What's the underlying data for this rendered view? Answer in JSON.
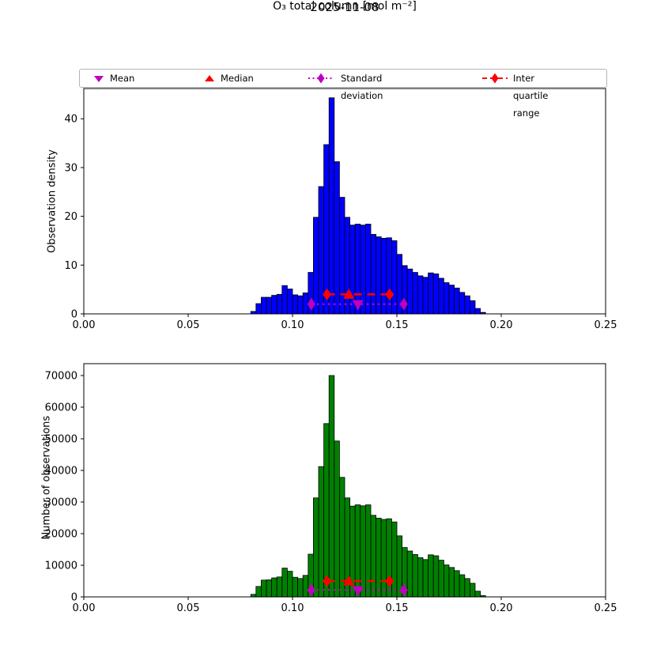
{
  "figure": {
    "title": "2025-11-08",
    "xlabel": "O₃ total column [mol m⁻²]",
    "background_color": "#ffffff"
  },
  "legend": {
    "items": [
      {
        "label": "Mean",
        "marker": "triangle-down",
        "color": "#bf00bf"
      },
      {
        "label": "Median",
        "marker": "triangle-up",
        "color": "#ff0000"
      },
      {
        "label": "Standard deviation",
        "marker": "diamond-dotted-line",
        "color": "#bf00bf"
      },
      {
        "label": "Inter quartile range",
        "marker": "diamond-dashed-line",
        "color": "#ff0000"
      }
    ]
  },
  "stats": {
    "mean": 0.1313,
    "median": 0.127,
    "std_range": [
      0.109,
      0.1533
    ],
    "inter_quartile_range": [
      0.1165,
      0.1465
    ]
  },
  "chart_data": [
    {
      "type": "bar",
      "subtype": "histogram",
      "ylabel": "Observation density",
      "bar_color": "#0000ff",
      "bar_edge_color": "#000000",
      "bin_start": 0.08,
      "bin_width": 0.0025,
      "bin_end": 0.1925,
      "values": [
        0.5,
        2.1,
        3.4,
        3.4,
        3.8,
        4.0,
        5.8,
        5.1,
        3.9,
        3.7,
        4.3,
        8.5,
        19.8,
        26.1,
        34.7,
        44.3,
        31.2,
        23.9,
        19.8,
        18.2,
        18.4,
        18.2,
        18.4,
        16.3,
        15.8,
        15.5,
        15.6,
        15.0,
        12.2,
        9.9,
        9.2,
        8.5,
        7.8,
        7.5,
        8.4,
        8.2,
        7.3,
        6.4,
        5.9,
        5.3,
        4.4,
        3.7,
        2.7,
        1.1,
        0.3
      ],
      "xlim": [
        0,
        0.25
      ],
      "ylim": [
        0,
        46.2
      ],
      "xticks": [
        0,
        0.05,
        0.1,
        0.15,
        0.2,
        0.25
      ],
      "xtick_labels": [
        "0.00",
        "0.05",
        "0.10",
        "0.15",
        "0.20",
        "0.25"
      ],
      "yticks": [
        0,
        10,
        20,
        30,
        40
      ],
      "ytick_labels": [
        "0",
        "10",
        "20",
        "30",
        "40"
      ],
      "grid": false,
      "markers": {
        "iqr_x": [
          0.1165,
          0.1465
        ],
        "iqr_y": 4.0,
        "median_x": 0.127,
        "std_x": [
          0.109,
          0.1533
        ],
        "std_y": 2.0,
        "mean_x": 0.1313,
        "iqr_color": "#ff0000",
        "std_color": "#bf00bf"
      }
    },
    {
      "type": "bar",
      "subtype": "histogram",
      "ylabel": "Number of observations",
      "bar_color": "#008000",
      "bar_edge_color": "#000000",
      "bin_start": 0.08,
      "bin_width": 0.0025,
      "bin_end": 0.1925,
      "values": [
        800,
        3300,
        5300,
        5400,
        6000,
        6300,
        9100,
        8100,
        6200,
        5800,
        6800,
        13500,
        31300,
        41200,
        54800,
        70000,
        49300,
        37800,
        31300,
        28700,
        29100,
        28800,
        29100,
        25800,
        24900,
        24500,
        24700,
        23700,
        19300,
        15600,
        14500,
        13400,
        12400,
        11800,
        13300,
        13000,
        11600,
        10100,
        9300,
        8300,
        7000,
        5800,
        4300,
        1800,
        400
      ],
      "xlim": [
        0,
        0.25
      ],
      "ylim": [
        0,
        73750
      ],
      "xticks": [
        0,
        0.05,
        0.1,
        0.15,
        0.2,
        0.25
      ],
      "xtick_labels": [
        "0.00",
        "0.05",
        "0.10",
        "0.15",
        "0.20",
        "0.25"
      ],
      "yticks": [
        0,
        10000,
        20000,
        30000,
        40000,
        50000,
        60000,
        70000
      ],
      "ytick_labels": [
        "0",
        "10000",
        "20000",
        "30000",
        "40000",
        "50000",
        "60000",
        "70000"
      ],
      "grid": false,
      "markers": {
        "iqr_x": [
          0.1165,
          0.1465
        ],
        "iqr_y": 5000,
        "median_x": 0.127,
        "std_x": [
          0.109,
          0.1533
        ],
        "std_y": 2200,
        "mean_x": 0.1313,
        "iqr_color": "#ff0000",
        "std_color": "#bf00bf"
      }
    }
  ]
}
